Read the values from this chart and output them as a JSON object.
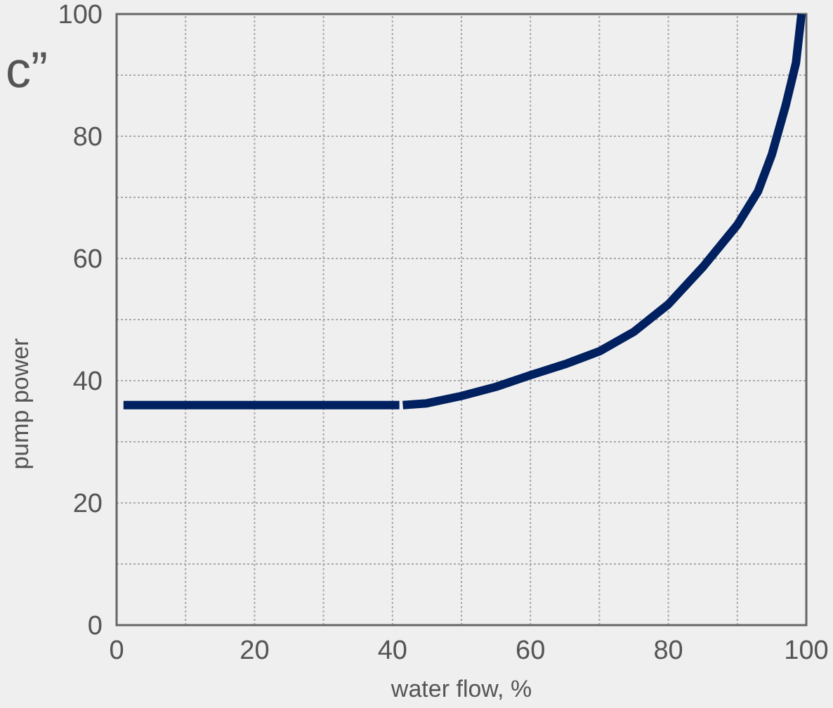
{
  "chart_data": {
    "type": "line",
    "xlabel": "water flow, %",
    "ylabel": "pump power",
    "annotations": [
      "c”"
    ],
    "xlim": [
      0,
      100
    ],
    "ylim": [
      0,
      100
    ],
    "xticks": [
      0,
      {
        "value": 10,
        "label": null
      },
      20,
      {
        "value": 30,
        "label": null
      },
      40,
      {
        "value": 50,
        "label": null
      },
      60,
      {
        "value": 70,
        "label": null
      },
      80,
      {
        "value": 90,
        "label": null
      },
      100
    ],
    "yticks": [
      0,
      {
        "value": 10,
        "label": null
      },
      20,
      {
        "value": 30,
        "label": null
      },
      40,
      {
        "value": 50,
        "label": null
      },
      60,
      {
        "value": 70,
        "label": null
      },
      80,
      {
        "value": 90,
        "label": null
      },
      100
    ],
    "grid": true,
    "line_style": "solid",
    "marker": "none",
    "series": [
      {
        "color": "#002060",
        "x": [
          1,
          41
        ],
        "values": [
          36,
          36
        ]
      },
      {
        "color": "#002060",
        "x": [
          41.5,
          45,
          50,
          55,
          60,
          65,
          70,
          75,
          80,
          85,
          90,
          93,
          95,
          97,
          98.5,
          99.3
        ],
        "values": [
          36,
          36.3,
          37.5,
          39,
          40.9,
          42.7,
          44.8,
          48,
          52.5,
          58.6,
          65.5,
          71,
          77,
          85,
          92,
          100
        ]
      }
    ]
  }
}
